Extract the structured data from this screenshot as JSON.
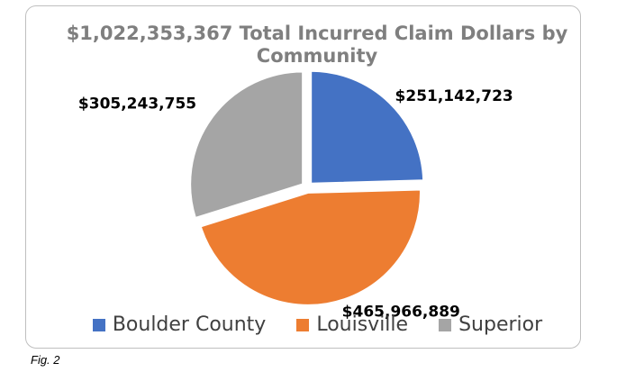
{
  "chart_data": {
    "type": "pie",
    "title": "$1,022,353,367 Total Incurred Claim Dollars by Community",
    "categories": [
      "Boulder County",
      "Louisville",
      "Superior"
    ],
    "values": [
      251142723,
      465966889,
      305243755
    ],
    "data_labels": [
      "$251,142,723",
      "$465,966,889",
      "$305,243,755"
    ],
    "colors": [
      "#4472C4",
      "#ED7D31",
      "#A5A5A5"
    ],
    "legend_position": "bottom",
    "start_angle": "12 o'clock, clockwise"
  },
  "caption": "Fig. 2"
}
